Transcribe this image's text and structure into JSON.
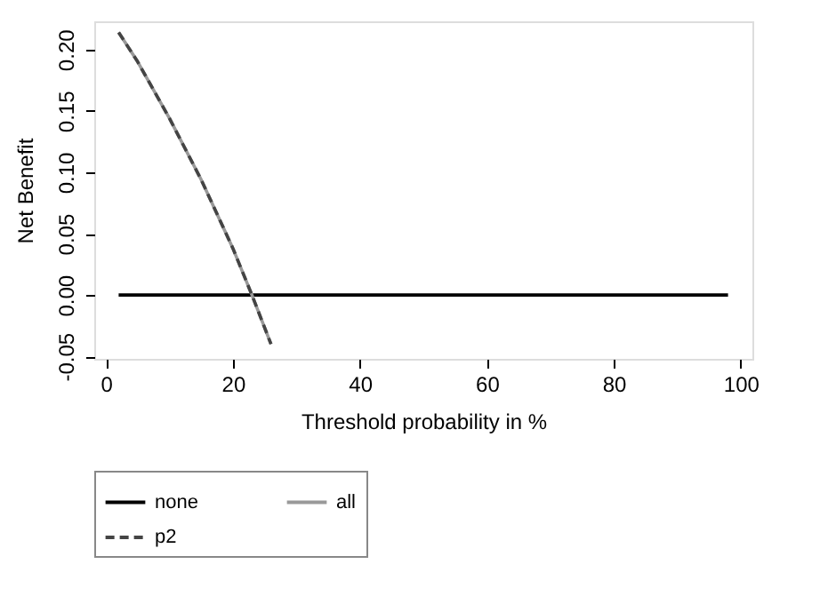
{
  "chart_data": {
    "type": "line",
    "xlabel": "Threshold probability in %",
    "ylabel": "Net Benefit",
    "xlim": [
      -1.84,
      101.84
    ],
    "xticks": [
      0,
      20,
      40,
      60,
      80,
      100
    ],
    "ylim": [
      -0.052,
      0.223
    ],
    "yticks": [
      -0.05,
      {
        "value": 0,
        "label": "0.00"
      },
      0.05,
      {
        "value": 0.1,
        "label": "0.10"
      },
      0.15,
      {
        "value": 0.2,
        "label": "0.20"
      }
    ],
    "grid": false,
    "legend": "bottom",
    "marker": "none",
    "series": [
      {
        "name": "none",
        "color": "#000000",
        "line_style": "solid",
        "x": [
          2,
          98
        ],
        "values": [
          0,
          0
        ]
      },
      {
        "name": "all",
        "color": "#999999",
        "line_style": "solid",
        "x": [
          2,
          5,
          10,
          15,
          20,
          23,
          26
        ],
        "values": [
          0.214,
          0.19,
          0.144,
          0.094,
          0.038,
          0.0,
          -0.04
        ]
      },
      {
        "name": "p2",
        "color": "#444444",
        "line_style": "dashed",
        "x": [
          2,
          5,
          10,
          15,
          20,
          23,
          26
        ],
        "values": [
          0.214,
          0.19,
          0.144,
          0.094,
          0.038,
          0.0,
          -0.04
        ]
      }
    ]
  }
}
